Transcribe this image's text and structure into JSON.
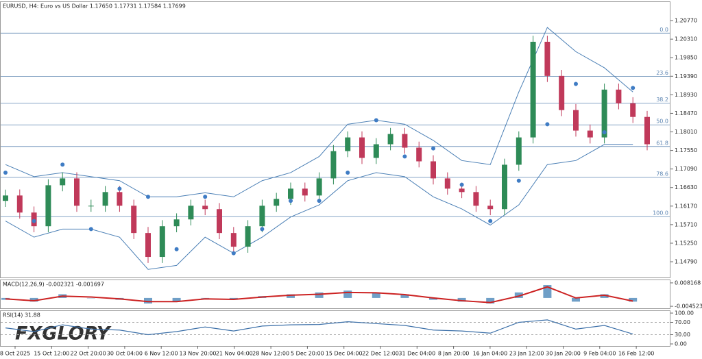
{
  "chart_data": {
    "type": "candlestick",
    "title": "EURUSD, H4:  Euro vs US Dollar  1.17650 1.17731 1.17584 1.17699",
    "watermark": "FXGLORY",
    "ylim": [
      1.144,
      1.2123
    ],
    "yticks": [
      {
        "value": 1.2077,
        "label": "1.20770"
      },
      {
        "value": 1.2031,
        "label": "1.20310"
      },
      {
        "value": 1.1985,
        "label": "1.19850"
      },
      {
        "value": 1.1939,
        "label": "1.19390"
      },
      {
        "value": 1.1893,
        "label": "1.18930"
      },
      {
        "value": 1.1847,
        "label": "1.18470"
      },
      {
        "value": 1.1801,
        "label": "1.18010"
      },
      {
        "value": 1.1755,
        "label": "1.17550"
      },
      {
        "value": 1.1709,
        "label": "1.17090"
      },
      {
        "value": 1.1663,
        "label": "1.16630"
      },
      {
        "value": 1.1617,
        "label": "1.16170"
      },
      {
        "value": 1.1571,
        "label": "1.15710"
      },
      {
        "value": 1.1525,
        "label": "1.15250"
      },
      {
        "value": 1.1479,
        "label": "1.14790"
      }
    ],
    "x_labels": [
      "8 Oct 2025",
      "15 Oct 12:00",
      "22 Oct 20:00",
      "30 Oct 04:00",
      "6 Nov 12:00",
      "13 Nov 20:00",
      "21 Nov 04:00",
      "28 Nov 12:00",
      "5 Dec 20:00",
      "15 Dec 04:00",
      "22 Dec 12:00",
      "31 Dec 04:00",
      "8 Jan 20:00",
      "16 Jan 04:00",
      "23 Jan 12:00",
      "30 Jan 20:00",
      "9 Feb 04:00",
      "16 Feb 12:00"
    ],
    "up_color": "#2e8b57",
    "down_color": "#c0395a",
    "ohlc": [
      [
        1.163,
        1.1658,
        1.1615,
        1.16433
      ],
      [
        1.16433,
        1.16583,
        1.1586,
        1.1601
      ],
      [
        1.1601,
        1.1616,
        1.15521,
        1.15671
      ],
      [
        1.15671,
        1.16837,
        1.15521,
        1.16687
      ],
      [
        1.16687,
        1.17007,
        1.16537,
        1.16857
      ],
      [
        1.16857,
        1.17007,
        1.16029,
        1.16179
      ],
      [
        1.16179,
        1.16329,
        1.16029,
        1.16179
      ],
      [
        1.16179,
        1.16668,
        1.16029,
        1.16518
      ],
      [
        1.16518,
        1.16668,
        1.16029,
        1.16179
      ],
      [
        1.16179,
        1.16329,
        1.15352,
        1.15502
      ],
      [
        1.15502,
        1.15652,
        1.14759,
        1.14909
      ],
      [
        1.14909,
        1.15821,
        1.14759,
        1.15671
      ],
      [
        1.15671,
        1.1599,
        1.15521,
        1.1584
      ],
      [
        1.1584,
        1.16329,
        1.1569,
        1.16179
      ],
      [
        1.16179,
        1.16329,
        1.15945,
        1.16095
      ],
      [
        1.16095,
        1.16245,
        1.15352,
        1.15502
      ],
      [
        1.15502,
        1.15652,
        1.15013,
        1.15163
      ],
      [
        1.15163,
        1.15821,
        1.15013,
        1.15671
      ],
      [
        1.15671,
        1.16329,
        1.15521,
        1.16179
      ],
      [
        1.16179,
        1.16499,
        1.16029,
        1.16349
      ],
      [
        1.16349,
        1.16753,
        1.16199,
        1.16603
      ],
      [
        1.16603,
        1.16753,
        1.16283,
        1.16433
      ],
      [
        1.16433,
        1.17007,
        1.16283,
        1.16857
      ],
      [
        1.16857,
        1.17684,
        1.16707,
        1.17534
      ],
      [
        1.17534,
        1.18023,
        1.17384,
        1.17873
      ],
      [
        1.17873,
        1.18023,
        1.17215,
        1.17365
      ],
      [
        1.17365,
        1.17854,
        1.17215,
        1.17704
      ],
      [
        1.17704,
        1.18108,
        1.17554,
        1.17958
      ],
      [
        1.17958,
        1.18108,
        1.17469,
        1.17619
      ],
      [
        1.17619,
        1.17769,
        1.1713,
        1.1728
      ],
      [
        1.1728,
        1.1743,
        1.16707,
        1.16857
      ],
      [
        1.16857,
        1.17007,
        1.16453,
        1.16603
      ],
      [
        1.16603,
        1.16753,
        1.16368,
        1.16518
      ],
      [
        1.16518,
        1.16668,
        1.16029,
        1.16179
      ],
      [
        1.16179,
        1.16329,
        1.15945,
        1.16095
      ],
      [
        1.16095,
        1.17346,
        1.15945,
        1.17196
      ],
      [
        1.17196,
        1.18023,
        1.17046,
        1.17873
      ],
      [
        1.17873,
        1.20395,
        1.17723,
        1.20245
      ],
      [
        1.20245,
        1.20395,
        1.19248,
        1.19398
      ],
      [
        1.19398,
        1.19548,
        1.18401,
        1.18551
      ],
      [
        1.18551,
        1.18701,
        1.17893,
        1.18043
      ],
      [
        1.18043,
        1.18193,
        1.17723,
        1.17873
      ],
      [
        1.17873,
        1.19209,
        1.17723,
        1.19059
      ],
      [
        1.19059,
        1.19209,
        1.1857,
        1.1872
      ],
      [
        1.1872,
        1.1887,
        1.18231,
        1.18381
      ],
      [
        1.18381,
        1.18531,
        1.17554,
        1.17704
      ]
    ],
    "bands": {
      "x": [
        0,
        2,
        4,
        6,
        8,
        10,
        12,
        14,
        16,
        18,
        20,
        22,
        24,
        26,
        28,
        30,
        32,
        34,
        36,
        38,
        40,
        42,
        44
      ],
      "color": "#4a7fb5",
      "upper": [
        1.172,
        1.169,
        1.17,
        1.169,
        1.168,
        1.164,
        1.164,
        1.165,
        1.164,
        1.168,
        1.17,
        1.174,
        1.182,
        1.183,
        1.182,
        1.178,
        1.173,
        1.172,
        1.19,
        1.206,
        1.2,
        1.196,
        1.19
      ],
      "lower": [
        1.158,
        1.154,
        1.156,
        1.156,
        1.154,
        1.146,
        1.147,
        1.154,
        1.15,
        1.154,
        1.159,
        1.162,
        1.168,
        1.17,
        1.169,
        1.164,
        1.161,
        1.157,
        1.162,
        1.172,
        1.173,
        1.177,
        1.177
      ],
      "sar": [
        1.17,
        1.158,
        1.172,
        1.156,
        1.166,
        1.164,
        1.151,
        1.164,
        1.15,
        1.156,
        1.163,
        1.163,
        1.17,
        1.183,
        1.174,
        1.176,
        1.167,
        1.158,
        1.168,
        1.182,
        1.192,
        1.18,
        1.191
      ]
    },
    "fib": {
      "color": "#5b84b1",
      "levels": [
        {
          "label": "0.0",
          "price": 1.2046
        },
        {
          "label": "23.6",
          "price": 1.19386
        },
        {
          "label": "38.2",
          "price": 1.18722
        },
        {
          "label": "50.0",
          "price": 1.18185
        },
        {
          "label": "61.8",
          "price": 1.17648
        },
        {
          "label": "78.6",
          "price": 1.16883
        },
        {
          "label": "100.0",
          "price": 1.1591
        }
      ]
    },
    "macd": {
      "title": "MACD(12,26,9) -0.002321 -0.001697",
      "ylim": [
        -0.00561,
        0.00962
      ],
      "yticks": [
        0.008168,
        -0.004523
      ],
      "hist_color": "#6f9fc7",
      "signal_color": "#cc2222",
      "hist": [
        -0.001,
        -0.002,
        0.002,
        0,
        -0.001,
        -0.003,
        -0.002,
        0,
        -0.001,
        0.001,
        0.002,
        0.003,
        0.004,
        0.003,
        0.002,
        -0.001,
        -0.002,
        -0.003,
        0.003,
        0.007,
        -0.002,
        0.002,
        -0.002
      ],
      "signal": [
        -0.0005,
        -0.0015,
        0.001,
        0.0005,
        -0.0005,
        -0.002,
        -0.002,
        -0.0005,
        -0.0008,
        0.0005,
        0.0015,
        0.002,
        0.003,
        0.0028,
        0.0018,
        0,
        -0.0015,
        -0.0025,
        0.001,
        0.006,
        0,
        0.0015,
        -0.0017
      ]
    },
    "rsi": {
      "title": "RSI(14) 31.88",
      "ylim": [
        0,
        100
      ],
      "color": "#3b6fa8",
      "yticks": [
        {
          "value": 100,
          "label": "100.00"
        },
        {
          "value": 70,
          "label": "70.00"
        },
        {
          "value": 30,
          "label": "30.00"
        },
        {
          "value": 0,
          "label": "0.00"
        }
      ],
      "values": [
        52,
        40,
        62,
        48,
        45,
        30,
        40,
        55,
        42,
        58,
        62,
        63,
        72,
        66,
        60,
        45,
        42,
        35,
        70,
        78,
        48,
        60,
        32
      ]
    }
  }
}
